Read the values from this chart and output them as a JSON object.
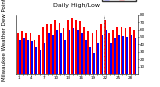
{
  "title": "Milwaukee Weather Dew Point",
  "subtitle": "Daily High/Low",
  "bar_color_high": "#ff0000",
  "bar_color_low": "#0000ff",
  "legend_high": "High",
  "legend_low": "Low",
  "days": [
    1,
    2,
    3,
    4,
    5,
    6,
    7,
    8,
    9,
    10,
    11,
    12,
    13,
    14,
    15,
    16,
    17,
    18,
    19,
    20,
    21,
    22,
    23,
    24,
    25,
    26,
    27,
    28,
    29
  ],
  "highs": [
    55,
    58,
    55,
    55,
    46,
    52,
    64,
    67,
    67,
    73,
    69,
    62,
    73,
    75,
    73,
    72,
    64,
    58,
    55,
    60,
    67,
    73,
    55,
    60,
    64,
    64,
    62,
    64,
    60
  ],
  "lows": [
    46,
    48,
    46,
    44,
    37,
    32,
    42,
    55,
    53,
    60,
    55,
    46,
    60,
    62,
    60,
    56,
    46,
    37,
    28,
    42,
    53,
    60,
    42,
    48,
    52,
    51,
    50,
    52,
    49
  ],
  "ylim": [
    0,
    80
  ],
  "yticks": [
    10,
    20,
    30,
    40,
    50,
    60,
    70,
    80
  ],
  "vline_after_idx": 21,
  "background_color": "#ffffff",
  "title_fontsize": 4.0,
  "subtitle_fontsize": 4.5,
  "tick_fontsize": 3.0,
  "legend_fontsize": 3.0
}
